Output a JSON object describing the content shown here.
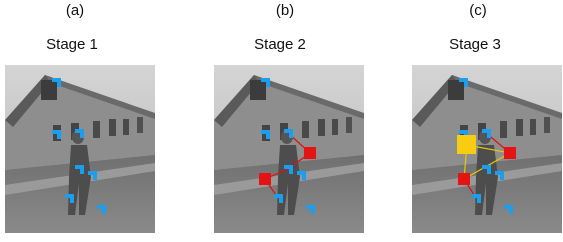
{
  "panels": [
    {
      "label": "(a)",
      "stage": "Stage 1"
    },
    {
      "label": "(b)",
      "stage": "Stage 2"
    },
    {
      "label": "(c)",
      "stage": "Stage 3"
    }
  ]
}
